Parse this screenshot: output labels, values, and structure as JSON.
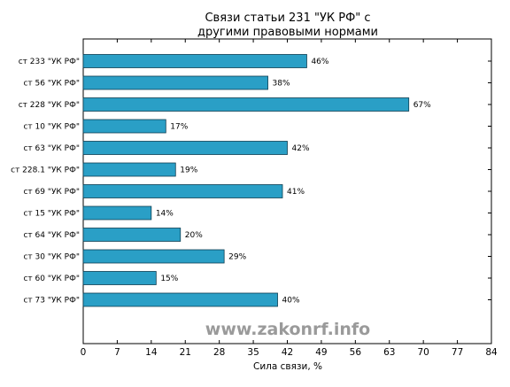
{
  "chart_data": {
    "type": "bar",
    "orientation": "horizontal",
    "title_lines": [
      "Связи статьи 231 \"УК РФ\" с",
      "другими правовыми нормами"
    ],
    "xlabel": "Сила связи, %",
    "ylabel": "",
    "xlim": [
      0,
      84
    ],
    "xticks": [
      "0",
      "7",
      "14",
      "21",
      "28",
      "35",
      "42",
      "49",
      "56",
      "63",
      "70",
      "77",
      "84"
    ],
    "categories": [
      "ст 233 \"УК РФ\"",
      "ст 56 \"УК РФ\"",
      "ст 228 \"УК РФ\"",
      "ст 10 \"УК РФ\"",
      "ст 63 \"УК РФ\"",
      "ст 228.1 \"УК РФ\"",
      "ст 69 \"УК РФ\"",
      "ст 15 \"УК РФ\"",
      "ст 64 \"УК РФ\"",
      "ст 30 \"УК РФ\"",
      "ст 60 \"УК РФ\"",
      "ст 73 \"УК РФ\""
    ],
    "values": [
      46,
      38,
      67,
      17,
      42,
      19,
      41,
      14,
      20,
      29,
      15,
      40
    ],
    "value_labels": [
      "46%",
      "38%",
      "67%",
      "17%",
      "42%",
      "19%",
      "41%",
      "14%",
      "20%",
      "29%",
      "15%",
      "40%"
    ],
    "bar_color": "#2a9fc6",
    "grid": false,
    "watermark": "www.zakonrf.info"
  }
}
